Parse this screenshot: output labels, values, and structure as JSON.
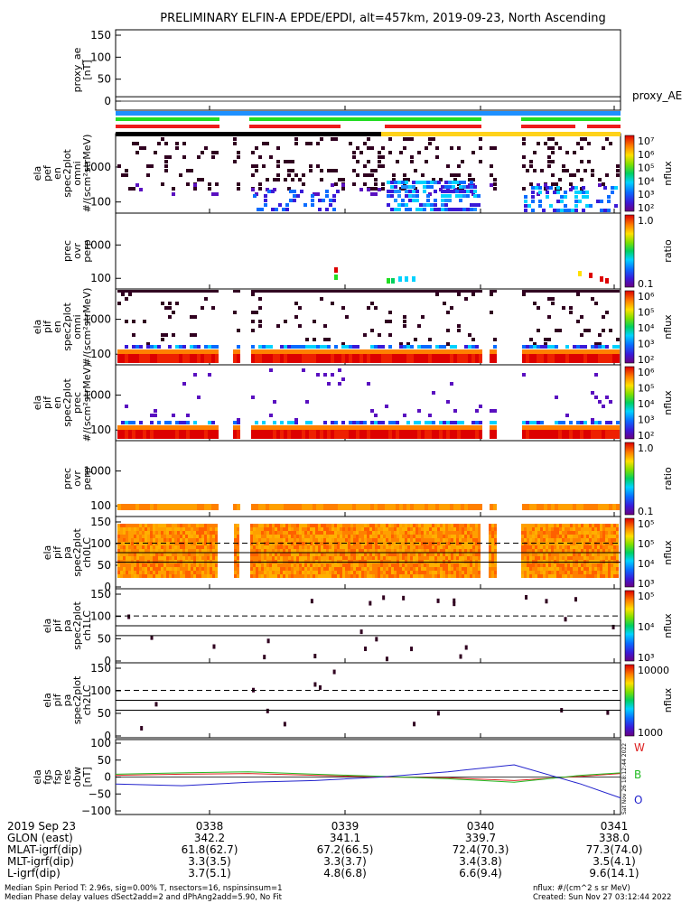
{
  "title": "PRELIMINARY ELFIN-A EPDE/EPDI, alt=457km, 2019-09-23, North Ascending",
  "colors": {
    "blue_bar": "#1e90ff",
    "green_bar": "#22dd22",
    "red_bar": "#ee1c1c",
    "black_bar": "#000000",
    "yellow_bar": "#ffd21a",
    "trace_W": "#dd2222",
    "trace_B": "#22bb22",
    "trace_O": "#2222cc"
  },
  "panels": {
    "p1": {
      "label": [
        "proxy_ae",
        "[nT]"
      ],
      "ticks": [
        "150",
        "100",
        "50",
        "0"
      ],
      "right_label": "proxy_AE"
    },
    "p2": {
      "label": [
        "ela",
        "pef",
        "en",
        "spec2plot",
        "omni",
        "#/(scm²strMeV)"
      ],
      "ticks": [
        "1000",
        "100"
      ],
      "cbar_ticks": [
        "10⁷",
        "10⁶",
        "10⁵",
        "10⁴",
        "10³",
        "10²"
      ],
      "cbar_title": "nflux"
    },
    "p3": {
      "label": [
        "prec",
        "ovr",
        "perp"
      ],
      "ticks": [
        "1000",
        "100"
      ],
      "cbar_ticks": [
        "1.0",
        "0.1"
      ],
      "cbar_title": "ratio"
    },
    "p4": {
      "label": [
        "ela",
        "pif",
        "en",
        "spec2plot",
        "omni",
        "#/(scm²strMeV)"
      ],
      "ticks": [
        "1000",
        "100"
      ],
      "cbar_ticks": [
        "10⁶",
        "10⁵",
        "10⁴",
        "10³",
        "10²"
      ],
      "cbar_title": "nflux"
    },
    "p5": {
      "label": [
        "ela",
        "pif",
        "en",
        "spec2plot",
        "prec",
        "#/(scm²strMeV)"
      ],
      "ticks": [
        "1000",
        "100"
      ],
      "cbar_ticks": [
        "10⁶",
        "10⁵",
        "10⁴",
        "10³",
        "10²"
      ],
      "cbar_title": "nflux"
    },
    "p6": {
      "label": [
        "prec",
        "ovr",
        "perp"
      ],
      "ticks": [
        "1000",
        "100"
      ],
      "cbar_ticks": [
        "1.0",
        "0.1"
      ],
      "cbar_title": "ratio"
    },
    "p7": {
      "label": [
        "ela",
        "pif",
        "pa",
        "spec2plot",
        "ch0LC"
      ],
      "ticks": [
        "150",
        "100",
        "50",
        "0"
      ],
      "cbar_ticks": [
        "10⁵",
        "10⁵",
        "10⁴",
        "10³"
      ],
      "cbar_title": "nflux"
    },
    "p8": {
      "label": [
        "ela",
        "pif",
        "pa",
        "spec2plot",
        "ch1LC"
      ],
      "ticks": [
        "150",
        "100",
        "50",
        "0"
      ],
      "cbar_ticks": [
        "10⁵",
        "10⁴",
        "10³"
      ],
      "cbar_title": "nflux"
    },
    "p9": {
      "label": [
        "ela",
        "pif",
        "pa",
        "spec2plot",
        "ch2LC"
      ],
      "ticks": [
        "150",
        "100",
        "50",
        "0"
      ],
      "cbar_ticks": [
        "10000",
        "1000"
      ],
      "cbar_title": "nflux"
    },
    "p10": {
      "label": [
        "ela",
        "fgs",
        "fsp",
        "res",
        "obw",
        "[nT]"
      ],
      "ticks": [
        "100",
        "50",
        "0",
        "−50",
        "−100"
      ],
      "legend": [
        "W",
        "B",
        "O"
      ]
    }
  },
  "chart_data": {
    "type": "line",
    "title": "PRELIMINARY ELFIN-A EPDE/EPDI, alt=457km, 2019-09-23, North Ascending",
    "panels_summary": "10 stacked time-series panels (spectrograms and line plots) vs UT time",
    "x_ticks": [
      "0338",
      "0339",
      "0340",
      "0341"
    ],
    "proxy_ae": {
      "ylim": [
        0,
        150
      ],
      "values": [
        10,
        10,
        10,
        10
      ]
    },
    "fgs_residuals": {
      "ylim": [
        -100,
        100
      ],
      "time_minutes_from_0337_4": [
        0.0,
        0.5,
        1.0,
        1.5,
        2.0,
        2.5,
        3.0,
        3.5,
        3.8
      ],
      "series": [
        {
          "name": "W",
          "values": [
            5,
            8,
            10,
            5,
            0,
            -2,
            -10,
            2,
            10
          ]
        },
        {
          "name": "B",
          "values": [
            8,
            12,
            15,
            8,
            2,
            -5,
            -15,
            5,
            12
          ]
        },
        {
          "name": "O",
          "values": [
            -20,
            -25,
            -15,
            -10,
            0,
            15,
            35,
            -20,
            -60
          ]
        }
      ]
    }
  },
  "ephemeris": {
    "header_label": "2019 Sep 23",
    "times": [
      "0338",
      "0339",
      "0340",
      "0341"
    ],
    "rows": [
      {
        "label": "GLON (east)",
        "values": [
          "342.2",
          "341.1",
          "339.7",
          "338.0"
        ]
      },
      {
        "label": "MLAT-igrf(dip)",
        "values": [
          "61.8(62.7)",
          "67.2(66.5)",
          "72.4(70.3)",
          "77.3(74.0)"
        ]
      },
      {
        "label": "MLT-igrf(dip)",
        "values": [
          "3.3(3.5)",
          "3.3(3.7)",
          "3.4(3.8)",
          "3.5(4.1)"
        ]
      },
      {
        "label": "L-igrf(dip)",
        "values": [
          "3.7(5.1)",
          "4.8(6.8)",
          "6.6(9.4)",
          "9.6(14.1)"
        ]
      }
    ]
  },
  "footer": {
    "line1_left": "Median Spin Period T: 2.96s, sig=0.00% T, nsectors=16, nspinsinsum=1",
    "line2_left": "Median Phase delay values dSect2add=2 and dPhAng2add=5.90, No Fit",
    "line1_right": "nflux: #/(cm^2 s sr MeV)",
    "line2_right": "Created: Sun Nov 27 03:12:44 2022"
  },
  "stamp": "Sat Nov 26 18:12:44 2022"
}
